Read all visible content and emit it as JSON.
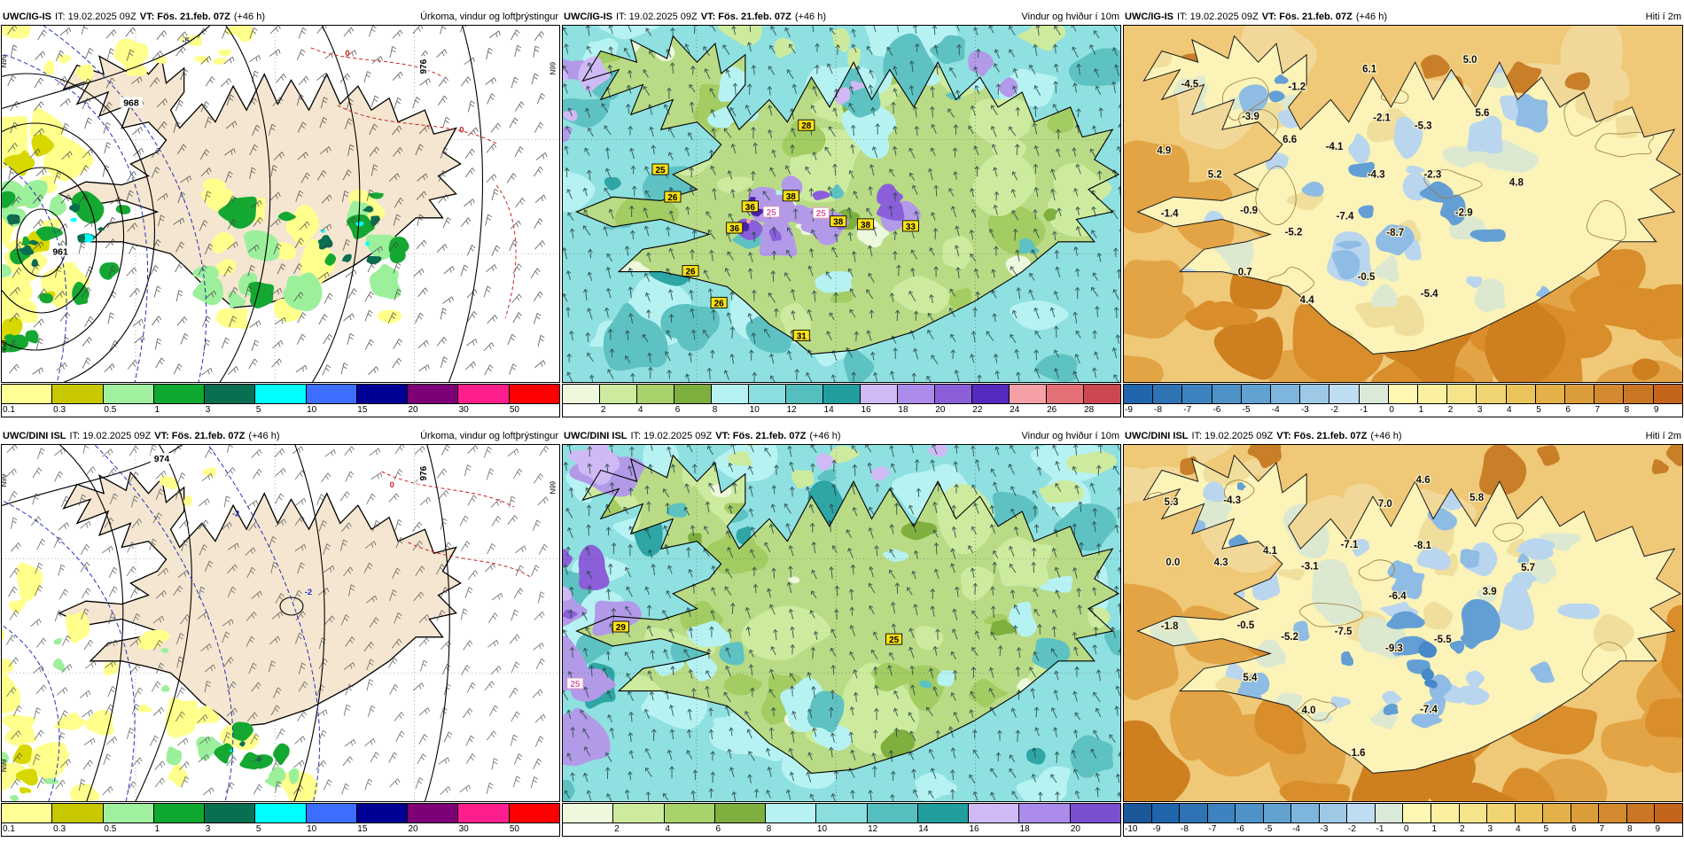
{
  "page": {
    "background": "#FFFFFF",
    "map_region": "Iceland",
    "layout": "2x3 model comparison"
  },
  "chart_data": [
    {
      "type": "heatmap",
      "panel": "row1-col1",
      "kind": "precip",
      "title": {
        "model": "UWC/IG-IS",
        "run": "IT: 19.02.2025 09Z",
        "valid": "VT: Fös. 21.feb. 07Z",
        "lead": "(+46 h)",
        "product": "Úrkoma, vindur og loftþrýstingur"
      },
      "legend": {
        "position": "bottom",
        "tick_start": 0,
        "ticks": [
          "0.1",
          "0.3",
          "0.5",
          "1",
          "3",
          "5",
          "10",
          "15",
          "20",
          "30",
          "50"
        ],
        "colors": [
          "#FFFF96",
          "#C8C800",
          "#A0F0A0",
          "#0FA830",
          "#0A6E50",
          "#00FFFF",
          "#3C6EFF",
          "#000096",
          "#7D0078",
          "#FF1E8C",
          "#FF0000"
        ]
      },
      "palette": {
        "sea": "#FFFFFF",
        "land": "#F4E6D0",
        "coast": "#000000",
        "isobar": "#000000",
        "dash_blue": "#2233BB",
        "dash_red": "#CC2222",
        "barb": "#444444",
        "rain_yellow": "#FFFF8C",
        "rain_olive": "#D8D800",
        "rain_lightgreen": "#9CF09C",
        "rain_green": "#14A832",
        "rain_darkgreen": "#0A6E50",
        "rain_cyan": "#00FFFF"
      },
      "annotations": [
        [
          "961",
          0.105,
          0.64,
          "pressure"
        ],
        [
          "968",
          0.232,
          0.223,
          "pressure"
        ],
        [
          "976",
          0.76,
          0.115,
          "pressure-v"
        ],
        [
          "0",
          0.62,
          0.085,
          "red"
        ],
        [
          "0",
          0.825,
          0.3,
          "red"
        ],
        [
          "-5",
          0.33,
          0.05,
          "blue"
        ],
        [
          "N99",
          0.008,
          0.1,
          "edge"
        ],
        [
          "N99",
          0.008,
          0.9,
          "edge"
        ],
        [
          "N99",
          0.993,
          0.12,
          "edge"
        ]
      ]
    },
    {
      "type": "heatmap",
      "panel": "row1-col2",
      "kind": "wind",
      "title": {
        "model": "UWC/IG-IS",
        "run": "IT: 19.02.2025 09Z",
        "valid": "VT: Fös. 21.feb. 07Z",
        "lead": "(+46 h)",
        "product": "Vindur og hviður í 10m"
      },
      "legend": {
        "position": "bottom",
        "tick_start": 1,
        "ticks": [
          "2",
          "4",
          "6",
          "8",
          "10",
          "12",
          "14",
          "16",
          "18",
          "20",
          "22",
          "24",
          "26",
          "28"
        ],
        "colors": [
          "#EDF8DC",
          "#CDEB9E",
          "#A9D16C",
          "#7FAF3E",
          "#B7F2F2",
          "#8ADEDE",
          "#55BEBE",
          "#239E9E",
          "#CFBAF6",
          "#AC8CEA",
          "#8A5FD9",
          "#552ABE",
          "#F5A0A6",
          "#E57078",
          "#CC4850"
        ]
      },
      "palette": {
        "base": "#8FE0E0",
        "pale_cyan": "#B7F2F2",
        "teal": "#5FC2C2",
        "dark_teal": "#2FA6A6",
        "land_green": "#B9DB86",
        "green_light": "#CDEB9E",
        "green": "#A3CC62",
        "green_dark": "#7FAF3E",
        "pale": "#EDF8DC",
        "lavender": "#CFBAF6",
        "purple": "#B29AE8",
        "purple_mid": "#8A5FD9",
        "purple_dark": "#4A22AA",
        "pink": "#F0A0A8",
        "coast": "#000000",
        "arrow": "#2A4A4A",
        "label_bg": "#FFE114",
        "label_alt_text": "#D960A0"
      },
      "annotations": [
        [
          "28",
          0.437,
          0.289,
          "wind-yellow"
        ],
        [
          "25",
          0.175,
          0.413,
          "wind-yellow"
        ],
        [
          "26",
          0.197,
          0.49,
          "wind-yellow"
        ],
        [
          "36",
          0.336,
          0.517,
          "wind-yellow"
        ],
        [
          "38",
          0.409,
          0.487,
          "wind-yellow"
        ],
        [
          "25",
          0.374,
          0.532,
          "wind-pink"
        ],
        [
          "36",
          0.308,
          0.577,
          "wind-yellow"
        ],
        [
          "25",
          0.463,
          0.535,
          "wind-pink"
        ],
        [
          "38",
          0.494,
          0.559,
          "wind-yellow"
        ],
        [
          "38",
          0.543,
          0.567,
          "wind-yellow"
        ],
        [
          "33",
          0.624,
          0.572,
          "wind-yellow"
        ],
        [
          "26",
          0.229,
          0.698,
          "wind-yellow"
        ],
        [
          "26",
          0.28,
          0.787,
          "wind-yellow"
        ],
        [
          "31",
          0.428,
          0.879,
          "wind-yellow"
        ]
      ]
    },
    {
      "type": "heatmap",
      "panel": "row1-col3",
      "kind": "temp",
      "title": {
        "model": "UWC/IG-IS",
        "run": "IT: 19.02.2025 09Z",
        "valid": "VT: Fös. 21.feb. 07Z",
        "lead": "(+46 h)",
        "product": "Hiti í 2m"
      },
      "legend": {
        "position": "bottom",
        "tick_start": 0,
        "ticks": [
          "-9",
          "-8",
          "-7",
          "-6",
          "-5",
          "-4",
          "-3",
          "-2",
          "-1",
          "0",
          "1",
          "2",
          "3",
          "4",
          "5",
          "6",
          "7",
          "8",
          "9"
        ],
        "colors": [
          "#2166AC",
          "#2E74B5",
          "#3D83BF",
          "#4E92C8",
          "#61A2D1",
          "#7EB5DD",
          "#9DC9E7",
          "#BFDDF2",
          "#DAE9D8",
          "#FDF7B2",
          "#FAF0A0",
          "#F6E48B",
          "#F0D572",
          "#EAC35B",
          "#E3B049",
          "#DB9D3A",
          "#D3892E",
          "#CB7623",
          "#C4641B"
        ]
      },
      "palette": {
        "sea_base": "#EFC878",
        "sea_light": "#F2D898",
        "sea_orange": "#E2A445",
        "sea_deep": "#D98E2B",
        "sea_deepest": "#CE7F1F",
        "sea_brown": "#C87F28",
        "land": "#FBF3B8",
        "land_tan": "#F0DE9C",
        "pale_green": "#DCE9D0",
        "blue1": "#B9D6EE",
        "blue2": "#8FBCE4",
        "blue3": "#639FD4",
        "blue4": "#4688C8",
        "contour": "#9A7A3A",
        "coast": "#1A1A1A",
        "label": "#101010"
      },
      "annotations": [
        [
          "-4.5",
          0.118,
          0.173,
          "temp"
        ],
        [
          "-1.2",
          0.31,
          0.18,
          "temp"
        ],
        [
          "6.1",
          0.44,
          0.13,
          "temp"
        ],
        [
          "5.0",
          0.62,
          0.105,
          "temp"
        ],
        [
          "-3.9",
          0.227,
          0.264,
          "temp"
        ],
        [
          "6.6",
          0.297,
          0.328,
          "temp"
        ],
        [
          "-2.1",
          0.462,
          0.267,
          "temp"
        ],
        [
          "-5.3",
          0.536,
          0.29,
          "temp"
        ],
        [
          "5.6",
          0.642,
          0.254,
          "temp"
        ],
        [
          "4.9",
          0.072,
          0.36,
          "temp"
        ],
        [
          "-4.1",
          0.377,
          0.348,
          "temp"
        ],
        [
          "-4.3",
          0.452,
          0.427,
          "temp"
        ],
        [
          "-2.3",
          0.553,
          0.427,
          "temp"
        ],
        [
          "4.8",
          0.703,
          0.449,
          "temp"
        ],
        [
          "5.2",
          0.163,
          0.427,
          "temp"
        ],
        [
          "-1.4",
          0.082,
          0.536,
          "temp"
        ],
        [
          "-0.9",
          0.224,
          0.527,
          "temp"
        ],
        [
          "-5.2",
          0.304,
          0.588,
          "temp"
        ],
        [
          "-7.4",
          0.396,
          0.543,
          "temp"
        ],
        [
          "-8.7",
          0.486,
          0.59,
          "temp"
        ],
        [
          "-2.9",
          0.609,
          0.534,
          "temp"
        ],
        [
          "0.7",
          0.217,
          0.7,
          "temp"
        ],
        [
          "-0.5",
          0.434,
          0.714,
          "temp"
        ],
        [
          "-5.4",
          0.547,
          0.761,
          "temp"
        ],
        [
          "4.4",
          0.328,
          0.778,
          "temp"
        ]
      ]
    },
    {
      "type": "heatmap",
      "panel": "row2-col1",
      "kind": "precip",
      "title": {
        "model": "UWC/DINI ISL",
        "run": "IT: 19.02.2025 09Z",
        "valid": "VT: Fös. 21.feb. 07Z",
        "lead": "(+46 h)",
        "product": "Úrkoma, vindur og loftþrýstingur"
      },
      "legend": {
        "position": "bottom",
        "tick_start": 0,
        "ticks": [
          "0.1",
          "0.3",
          "0.5",
          "1",
          "3",
          "5",
          "10",
          "15",
          "20",
          "30",
          "50"
        ],
        "colors": [
          "#FFFF96",
          "#C8C800",
          "#A0F0A0",
          "#0FA830",
          "#0A6E50",
          "#00FFFF",
          "#3C6EFF",
          "#000096",
          "#7D0078",
          "#FF1E8C",
          "#FF0000"
        ]
      },
      "palette": {
        "sea": "#FFFFFF",
        "land": "#F4E6D0",
        "coast": "#000000",
        "isobar": "#000000",
        "dash_blue": "#2233BB",
        "dash_red": "#CC2222",
        "barb": "#555555",
        "rain_yellow": "#FFFF8C",
        "rain_olive": "#D8D800",
        "rain_lightgreen": "#9CF09C",
        "rain_green": "#14A832",
        "rain_darkgreen": "#0A6E50",
        "rain_cyan": "#00FFFF"
      },
      "annotations": [
        [
          "974",
          0.287,
          0.045,
          "pressure"
        ],
        [
          "976",
          0.76,
          0.08,
          "pressure-v"
        ],
        [
          "-2",
          0.42,
          0.2,
          "blue"
        ],
        [
          "-2",
          0.55,
          0.42,
          "blue"
        ],
        [
          "0",
          0.7,
          0.12,
          "red"
        ],
        [
          "N99",
          0.008,
          0.1,
          "edge"
        ],
        [
          "N99",
          0.008,
          0.9,
          "edge"
        ],
        [
          "N99",
          0.993,
          0.12,
          "edge"
        ]
      ]
    },
    {
      "type": "heatmap",
      "panel": "row2-col2",
      "kind": "wind",
      "title": {
        "model": "UWC/DINI ISL",
        "run": "IT: 19.02.2025 09Z",
        "valid": "VT: Fös. 21.feb. 07Z",
        "lead": "(+46 h)",
        "product": "Vindur og hviður í 10m"
      },
      "legend": {
        "position": "bottom",
        "tick_start": 1,
        "ticks": [
          "2",
          "4",
          "6",
          "8",
          "10",
          "12",
          "14",
          "16",
          "18",
          "20"
        ],
        "colors": [
          "#EDF8DC",
          "#CDEB9E",
          "#A9D16C",
          "#7FAF3E",
          "#B7F2F2",
          "#8ADEDE",
          "#55BEBE",
          "#239E9E",
          "#CFBAF6",
          "#AC8CEA",
          "#7A4FD0"
        ]
      },
      "palette": {
        "base": "#8FE0E0",
        "pale_cyan": "#B7F2F2",
        "teal": "#5FC2C2",
        "dark_teal": "#2FA6A6",
        "land_green": "#B9DB86",
        "green_light": "#CDEB9E",
        "green": "#A3CC62",
        "green_dark": "#7FAF3E",
        "pale": "#EDF8DC",
        "lavender": "#CFBAF6",
        "purple": "#B29AE8",
        "purple_mid": "#8A5FD9",
        "purple_dark": "#4A22AA",
        "pink": "#F0A0A8",
        "coast": "#000000",
        "arrow": "#2A4A4A",
        "label_bg": "#FFE114",
        "label_alt_text": "#D960A0"
      },
      "annotations": [
        [
          "29",
          0.104,
          0.52,
          "wind-yellow"
        ],
        [
          "25",
          0.022,
          0.679,
          "wind-pink"
        ],
        [
          "25",
          0.594,
          0.555,
          "wind-yellow"
        ]
      ]
    },
    {
      "type": "heatmap",
      "panel": "row2-col3",
      "kind": "temp",
      "title": {
        "model": "UWC/DINI ISL",
        "run": "IT: 19.02.2025 09Z",
        "valid": "VT: Fös. 21.feb. 07Z",
        "lead": "(+46 h)",
        "product": "Hiti í 2m"
      },
      "legend": {
        "position": "bottom",
        "tick_start": 0,
        "ticks": [
          "-10",
          "-9",
          "-8",
          "-7",
          "-6",
          "-5",
          "-4",
          "-3",
          "-2",
          "-1",
          "0",
          "1",
          "2",
          "3",
          "4",
          "5",
          "6",
          "7",
          "8",
          "9"
        ],
        "colors": [
          "#1A5899",
          "#2166AC",
          "#2E74B5",
          "#3D83BF",
          "#4E92C8",
          "#61A2D1",
          "#7EB5DD",
          "#9DC9E7",
          "#BFDDF2",
          "#DAE9D8",
          "#FDF7B2",
          "#FAF0A0",
          "#F6E48B",
          "#F0D572",
          "#EAC35B",
          "#E3B049",
          "#DB9D3A",
          "#D3892E",
          "#CB7623",
          "#C4641B"
        ]
      },
      "palette": {
        "sea_base": "#EFC878",
        "sea_light": "#F2D898",
        "sea_orange": "#E2A445",
        "sea_deep": "#D98E2B",
        "sea_deepest": "#CE7F1F",
        "sea_brown": "#C87F28",
        "land": "#FBF3B8",
        "land_tan": "#F0DE9C",
        "pale_green": "#DCE9D0",
        "blue1": "#B9D6EE",
        "blue2": "#8FBCE4",
        "blue3": "#639FD4",
        "blue4": "#4688C8",
        "contour": "#9A7A3A",
        "coast": "#1A1A1A",
        "label": "#101010"
      },
      "annotations": [
        [
          "5.3",
          0.085,
          0.169,
          "temp"
        ],
        [
          "-4.3",
          0.194,
          0.164,
          "temp"
        ],
        [
          "4.6",
          0.536,
          0.107,
          "temp"
        ],
        [
          "7.0",
          0.468,
          0.174,
          "temp"
        ],
        [
          "5.8",
          0.632,
          0.157,
          "temp"
        ],
        [
          "-7.1",
          0.404,
          0.289,
          "temp"
        ],
        [
          "-8.1",
          0.535,
          0.291,
          "temp"
        ],
        [
          "4.1",
          0.262,
          0.306,
          "temp"
        ],
        [
          "0.0",
          0.088,
          0.338,
          "temp"
        ],
        [
          "4.3",
          0.174,
          0.338,
          "temp"
        ],
        [
          "-3.1",
          0.333,
          0.35,
          "temp"
        ],
        [
          "5.7",
          0.724,
          0.353,
          "temp"
        ],
        [
          "-6.4",
          0.49,
          0.433,
          "temp"
        ],
        [
          "3.9",
          0.655,
          0.42,
          "temp"
        ],
        [
          "-1.8",
          0.082,
          0.517,
          "temp"
        ],
        [
          "-0.5",
          0.218,
          0.515,
          "temp"
        ],
        [
          "-5.2",
          0.297,
          0.547,
          "temp"
        ],
        [
          "-7.5",
          0.393,
          0.532,
          "temp"
        ],
        [
          "-9.3",
          0.484,
          0.58,
          "temp"
        ],
        [
          "-5.5",
          0.571,
          0.555,
          "temp"
        ],
        [
          "5.4",
          0.226,
          0.662,
          "temp"
        ],
        [
          "4.0",
          0.331,
          0.754,
          "temp"
        ],
        [
          "-7.4",
          0.546,
          0.751,
          "temp"
        ],
        [
          "1.6",
          0.42,
          0.873,
          "temp"
        ]
      ]
    }
  ]
}
